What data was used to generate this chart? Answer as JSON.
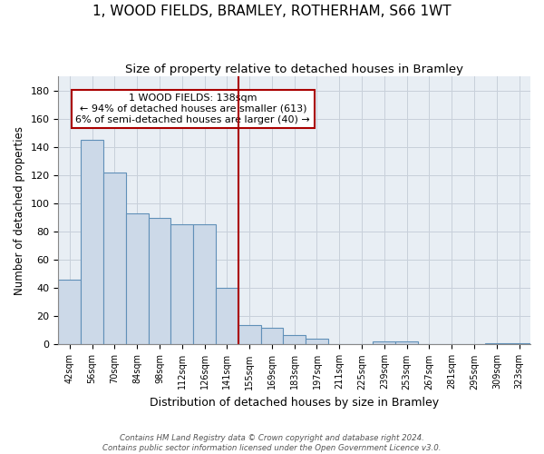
{
  "title": "1, WOOD FIELDS, BRAMLEY, ROTHERHAM, S66 1WT",
  "subtitle": "Size of property relative to detached houses in Bramley",
  "xlabel": "Distribution of detached houses by size in Bramley",
  "ylabel": "Number of detached properties",
  "categories": [
    "42sqm",
    "56sqm",
    "70sqm",
    "84sqm",
    "98sqm",
    "112sqm",
    "126sqm",
    "141sqm",
    "155sqm",
    "169sqm",
    "183sqm",
    "197sqm",
    "211sqm",
    "225sqm",
    "239sqm",
    "253sqm",
    "267sqm",
    "281sqm",
    "295sqm",
    "309sqm",
    "323sqm"
  ],
  "values": [
    46,
    145,
    122,
    93,
    90,
    85,
    85,
    40,
    14,
    12,
    7,
    4,
    0,
    0,
    2,
    2,
    0,
    0,
    0,
    1,
    1
  ],
  "bar_color": "#ccd9e8",
  "bar_edge_color": "#6090b8",
  "property_line_color": "#aa0000",
  "annotation_line1": "1 WOOD FIELDS: 138sqm",
  "annotation_line2": "← 94% of detached houses are smaller (613)",
  "annotation_line3": "6% of semi-detached houses are larger (40) →",
  "annotation_box_color": "#ffffff",
  "annotation_box_edge": "#aa0000",
  "footer_text": "Contains HM Land Registry data © Crown copyright and database right 2024.\nContains public sector information licensed under the Open Government Licence v3.0.",
  "ylim": [
    0,
    190
  ],
  "yticks": [
    0,
    20,
    40,
    60,
    80,
    100,
    120,
    140,
    160,
    180
  ],
  "grid_color": "#c8d0da",
  "background_color": "#e8eef4",
  "title_fontsize": 11,
  "subtitle_fontsize": 9.5,
  "title_fontweight": "normal"
}
